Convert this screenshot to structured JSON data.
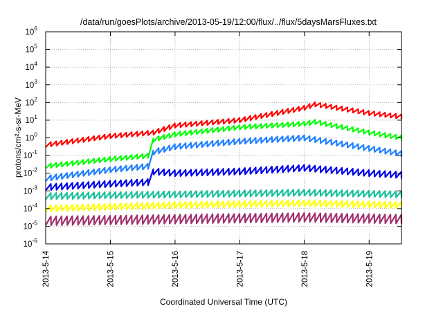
{
  "chart_data": {
    "type": "line",
    "title": "/data/run/goesPlots/archive/2013-05-19/12:00/flux/../flux/5daysMarsFluxes.txt",
    "xlabel": "Coordinated Universal Time (UTC)",
    "ylabel": "protons/cm²-s-sr-MeV",
    "y_scale": "log",
    "ylim_exp": [
      -6,
      6
    ],
    "y_ticks": [
      {
        "base": "10",
        "exp": "-6"
      },
      {
        "base": "10",
        "exp": "-5"
      },
      {
        "base": "10",
        "exp": "-4"
      },
      {
        "base": "10",
        "exp": "-3"
      },
      {
        "base": "10",
        "exp": "-2"
      },
      {
        "base": "10",
        "exp": "-1"
      },
      {
        "base": "10",
        "exp": "0"
      },
      {
        "base": "10",
        "exp": "1"
      },
      {
        "base": "10",
        "exp": "2"
      },
      {
        "base": "10",
        "exp": "3"
      },
      {
        "base": "10",
        "exp": "4"
      },
      {
        "base": "10",
        "exp": "5"
      },
      {
        "base": "10",
        "exp": "6"
      }
    ],
    "xlim": [
      "2013-05-14",
      "2013-05-19T12:00"
    ],
    "x_ticks": [
      "2013-5-14",
      "2013-5-15",
      "2013-5-16",
      "2013-5-17",
      "2013-5-18",
      "2013-5-19"
    ],
    "grid": true,
    "series": [
      {
        "color": "#ff0000",
        "x": [
          "2013-05-14",
          "2013-05-15",
          "2013-05-15T16:00",
          "2013-05-16",
          "2013-05-17",
          "2013-05-18",
          "2013-05-18T04:00",
          "2013-05-19",
          "2013-05-19T12:00"
        ],
        "y_exp": [
          -0.4,
          0.1,
          0.3,
          0.7,
          1.0,
          1.7,
          1.9,
          1.4,
          1.2
        ],
        "amp": 0.25
      },
      {
        "color": "#00ff00",
        "x": [
          "2013-05-14",
          "2013-05-15",
          "2013-05-15T15:00",
          "2013-05-15T16:00",
          "2013-05-16",
          "2013-05-17",
          "2013-05-18",
          "2013-05-18T04:00",
          "2013-05-19",
          "2013-05-19T12:00"
        ],
        "y_exp": [
          -1.6,
          -1.2,
          -1.0,
          -0.1,
          0.2,
          0.6,
          0.8,
          0.9,
          0.3,
          0.0
        ],
        "amp": 0.25
      },
      {
        "color": "#1e7fff",
        "x": [
          "2013-05-14",
          "2013-05-15",
          "2013-05-15T15:00",
          "2013-05-15T16:00",
          "2013-05-16",
          "2013-05-17",
          "2013-05-18",
          "2013-05-19",
          "2013-05-19T12:00"
        ],
        "y_exp": [
          -2.3,
          -1.8,
          -1.6,
          -0.8,
          -0.5,
          -0.2,
          0.0,
          -0.6,
          -0.9
        ],
        "amp": 0.3
      },
      {
        "color": "#0000e6",
        "x": [
          "2013-05-14",
          "2013-05-15",
          "2013-05-15T15:00",
          "2013-05-15T16:00",
          "2013-05-16",
          "2013-05-17",
          "2013-05-18",
          "2013-05-19",
          "2013-05-19T12:00"
        ],
        "y_exp": [
          -2.8,
          -2.6,
          -2.5,
          -1.9,
          -2.0,
          -1.9,
          -1.7,
          -2.0,
          -2.1
        ],
        "amp": 0.35
      },
      {
        "color": "#1abf9a",
        "x": [
          "2013-05-14",
          "2013-05-16",
          "2013-05-18",
          "2013-05-19T12:00"
        ],
        "y_exp": [
          -3.3,
          -3.2,
          -3.1,
          -3.2
        ],
        "amp": 0.35
      },
      {
        "color": "#ffff00",
        "x": [
          "2013-05-14",
          "2013-05-16",
          "2013-05-18",
          "2013-05-19T12:00"
        ],
        "y_exp": [
          -4.0,
          -3.8,
          -3.7,
          -3.8
        ],
        "amp": 0.35
      },
      {
        "color": "#a0306e",
        "x": [
          "2013-05-14",
          "2013-05-16",
          "2013-05-18",
          "2013-05-19T12:00"
        ],
        "y_exp": [
          -4.7,
          -4.6,
          -4.5,
          -4.6
        ],
        "amp": 0.5
      }
    ]
  }
}
